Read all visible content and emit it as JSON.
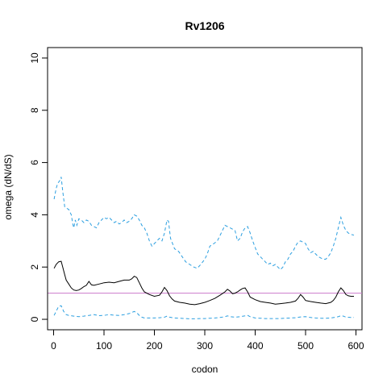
{
  "chart_data": {
    "type": "line",
    "title": "Rv1206",
    "xlabel": "codon",
    "ylabel": "omega (dN/dS)",
    "xlim": [
      -12,
      612
    ],
    "ylim": [
      -0.4,
      10.4
    ],
    "xticks": [
      0,
      100,
      200,
      300,
      400,
      500,
      600
    ],
    "yticks": [
      0,
      2,
      4,
      6,
      8,
      10
    ],
    "grid": false,
    "legend": "none",
    "reference_line": {
      "y": 1,
      "color": "#CC79CC"
    },
    "series": [
      {
        "color": "#000000",
        "style": "solid",
        "x": [
          1,
          5,
          10,
          15,
          18,
          22,
          25,
          30,
          35,
          40,
          45,
          50,
          55,
          60,
          65,
          70,
          75,
          80,
          90,
          100,
          110,
          120,
          130,
          140,
          150,
          155,
          160,
          165,
          170,
          175,
          180,
          190,
          200,
          210,
          215,
          220,
          225,
          230,
          235,
          240,
          250,
          260,
          270,
          280,
          290,
          300,
          310,
          320,
          330,
          340,
          345,
          350,
          355,
          360,
          365,
          370,
          375,
          380,
          385,
          390,
          400,
          410,
          420,
          430,
          440,
          450,
          460,
          470,
          480,
          485,
          490,
          495,
          500,
          510,
          520,
          530,
          540,
          550,
          555,
          560,
          565,
          570,
          575,
          580,
          585,
          590,
          596
        ],
        "values": [
          1.95,
          2.1,
          2.2,
          2.22,
          2.0,
          1.7,
          1.5,
          1.35,
          1.2,
          1.12,
          1.1,
          1.12,
          1.18,
          1.25,
          1.3,
          1.45,
          1.32,
          1.3,
          1.35,
          1.4,
          1.42,
          1.4,
          1.45,
          1.5,
          1.5,
          1.55,
          1.65,
          1.6,
          1.4,
          1.2,
          1.05,
          0.95,
          0.88,
          0.92,
          1.05,
          1.22,
          1.1,
          0.9,
          0.78,
          0.7,
          0.65,
          0.62,
          0.58,
          0.56,
          0.6,
          0.65,
          0.72,
          0.8,
          0.92,
          1.05,
          1.15,
          1.08,
          0.98,
          1.0,
          1.05,
          1.12,
          1.18,
          1.2,
          1.05,
          0.85,
          0.75,
          0.68,
          0.65,
          0.62,
          0.58,
          0.6,
          0.62,
          0.65,
          0.7,
          0.8,
          0.95,
          0.85,
          0.72,
          0.68,
          0.65,
          0.62,
          0.6,
          0.65,
          0.72,
          0.85,
          1.05,
          1.2,
          1.1,
          0.95,
          0.9,
          0.88,
          0.88
        ]
      },
      {
        "color": "#2C9FE0",
        "style": "dashed",
        "x": [
          1,
          5,
          8,
          12,
          15,
          18,
          22,
          26,
          30,
          35,
          38,
          40,
          43,
          46,
          50,
          55,
          60,
          65,
          70,
          75,
          80,
          85,
          90,
          95,
          100,
          105,
          110,
          115,
          120,
          125,
          130,
          135,
          140,
          145,
          150,
          155,
          160,
          165,
          170,
          175,
          180,
          185,
          190,
          195,
          200,
          205,
          210,
          215,
          220,
          225,
          228,
          232,
          240,
          248,
          255,
          262,
          270,
          278,
          285,
          292,
          300,
          305,
          310,
          318,
          325,
          330,
          335,
          340,
          345,
          350,
          355,
          360,
          365,
          370,
          375,
          380,
          385,
          390,
          395,
          400,
          405,
          410,
          415,
          420,
          425,
          430,
          435,
          440,
          445,
          450,
          455,
          460,
          465,
          470,
          475,
          480,
          485,
          490,
          495,
          500,
          505,
          510,
          515,
          520,
          525,
          530,
          535,
          540,
          545,
          550,
          555,
          560,
          565,
          570,
          575,
          580,
          585,
          590,
          596
        ],
        "values": [
          4.6,
          5.0,
          5.2,
          5.3,
          5.45,
          4.9,
          4.3,
          4.25,
          4.2,
          4.0,
          3.65,
          3.5,
          3.8,
          3.6,
          3.85,
          3.8,
          3.7,
          3.8,
          3.75,
          3.6,
          3.55,
          3.5,
          3.7,
          3.8,
          3.9,
          3.85,
          3.9,
          3.8,
          3.7,
          3.75,
          3.65,
          3.7,
          3.8,
          3.7,
          3.75,
          3.85,
          4.0,
          3.95,
          3.8,
          3.6,
          3.5,
          3.3,
          3.0,
          2.8,
          2.9,
          3.0,
          3.1,
          3.0,
          3.3,
          3.8,
          3.75,
          3.1,
          2.7,
          2.6,
          2.4,
          2.2,
          2.1,
          2.0,
          1.95,
          2.1,
          2.3,
          2.5,
          2.8,
          2.9,
          3.0,
          3.2,
          3.4,
          3.6,
          3.55,
          3.5,
          3.45,
          3.4,
          3.0,
          3.1,
          3.35,
          3.5,
          3.55,
          3.3,
          3.0,
          2.75,
          2.5,
          2.4,
          2.3,
          2.2,
          2.1,
          2.15,
          2.05,
          2.1,
          2.0,
          1.9,
          2.0,
          2.2,
          2.3,
          2.5,
          2.6,
          2.8,
          2.95,
          3.0,
          2.95,
          2.9,
          2.7,
          2.55,
          2.6,
          2.5,
          2.4,
          2.35,
          2.3,
          2.3,
          2.4,
          2.55,
          2.8,
          3.1,
          3.5,
          3.9,
          3.6,
          3.4,
          3.3,
          3.25,
          3.22
        ]
      },
      {
        "color": "#2C9FE0",
        "style": "dashed",
        "x": [
          1,
          5,
          10,
          15,
          20,
          25,
          30,
          40,
          50,
          60,
          70,
          80,
          90,
          100,
          110,
          120,
          130,
          140,
          150,
          160,
          165,
          170,
          175,
          180,
          190,
          200,
          210,
          220,
          225,
          230,
          240,
          250,
          260,
          270,
          280,
          290,
          300,
          310,
          320,
          330,
          340,
          345,
          350,
          360,
          370,
          380,
          385,
          390,
          400,
          410,
          420,
          430,
          440,
          450,
          460,
          470,
          480,
          490,
          500,
          510,
          520,
          530,
          540,
          550,
          560,
          565,
          570,
          575,
          580,
          590,
          596
        ],
        "values": [
          0.15,
          0.3,
          0.5,
          0.52,
          0.3,
          0.18,
          0.15,
          0.12,
          0.1,
          0.12,
          0.15,
          0.18,
          0.14,
          0.15,
          0.18,
          0.16,
          0.15,
          0.18,
          0.22,
          0.3,
          0.25,
          0.15,
          0.08,
          0.05,
          0.05,
          0.05,
          0.06,
          0.08,
          0.12,
          0.08,
          0.05,
          0.04,
          0.03,
          0.02,
          0.02,
          0.03,
          0.03,
          0.04,
          0.05,
          0.07,
          0.1,
          0.13,
          0.1,
          0.08,
          0.1,
          0.13,
          0.15,
          0.1,
          0.05,
          0.04,
          0.03,
          0.03,
          0.03,
          0.03,
          0.04,
          0.05,
          0.06,
          0.09,
          0.1,
          0.07,
          0.05,
          0.04,
          0.04,
          0.05,
          0.08,
          0.1,
          0.14,
          0.12,
          0.08,
          0.07,
          0.07
        ]
      }
    ]
  }
}
